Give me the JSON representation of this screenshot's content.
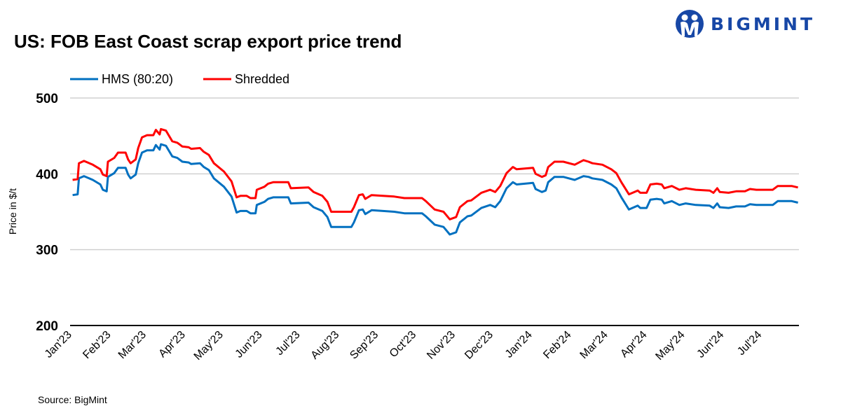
{
  "title": "US: FOB East Coast scrap export price trend",
  "brand": "BIGMINT",
  "source": "Source: BigMint",
  "chart_data": {
    "type": "line",
    "title": "US: FOB East Coast scrap export price trend",
    "ylabel": "Price in $/t",
    "xlabel": "",
    "ylim": [
      200,
      500
    ],
    "yticks": [
      200,
      300,
      400,
      500
    ],
    "grid": true,
    "legend": "top-left",
    "x_tick_labels": [
      "Jan'23",
      "Feb'23",
      "Mar'23",
      "Apr'23",
      "May'23",
      "Jun'23",
      "Jul'23",
      "Aug'23",
      "Sep'23",
      "Oct'23",
      "Nov'23",
      "Dec'23",
      "Jan'24",
      "Feb'24",
      "Mar'24",
      "Apr'24",
      "May'24",
      "Jun'24",
      "Jul'24"
    ],
    "x_tick_dates": [
      "2023-01-01",
      "2023-02-01",
      "2023-03-01",
      "2023-04-01",
      "2023-05-01",
      "2023-06-01",
      "2023-07-01",
      "2023-08-01",
      "2023-09-01",
      "2023-10-01",
      "2023-11-01",
      "2023-12-01",
      "2024-01-01",
      "2024-02-01",
      "2024-03-01",
      "2024-04-01",
      "2024-05-01",
      "2024-06-01",
      "2024-07-01"
    ],
    "x": [
      "2023-01-03",
      "2023-01-07",
      "2023-01-08",
      "2023-01-12",
      "2023-01-19",
      "2023-01-25",
      "2023-01-27",
      "2023-01-30",
      "2023-01-31",
      "2023-02-05",
      "2023-02-08",
      "2023-02-14",
      "2023-02-16",
      "2023-02-18",
      "2023-02-22",
      "2023-02-24",
      "2023-02-27",
      "2023-03-03",
      "2023-03-08",
      "2023-03-10",
      "2023-03-13",
      "2023-03-14",
      "2023-03-18",
      "2023-03-23",
      "2023-03-27",
      "2023-03-31",
      "2023-04-05",
      "2023-04-07",
      "2023-04-14",
      "2023-04-17",
      "2023-04-21",
      "2023-04-25",
      "2023-05-03",
      "2023-05-09",
      "2023-05-13",
      "2023-05-16",
      "2023-05-21",
      "2023-05-24",
      "2023-05-28",
      "2023-05-29",
      "2023-06-04",
      "2023-06-07",
      "2023-06-11",
      "2023-06-23",
      "2023-06-25",
      "2023-07-09",
      "2023-07-13",
      "2023-07-20",
      "2023-07-24",
      "2023-07-27",
      "2023-08-06",
      "2023-08-12",
      "2023-08-14",
      "2023-08-18",
      "2023-08-21",
      "2023-08-23",
      "2023-08-28",
      "2023-09-15",
      "2023-09-23",
      "2023-10-07",
      "2023-10-10",
      "2023-10-17",
      "2023-10-24",
      "2023-10-29",
      "2023-11-03",
      "2023-11-06",
      "2023-11-12",
      "2023-11-15",
      "2023-11-23",
      "2023-11-30",
      "2023-12-04",
      "2023-12-08",
      "2023-12-13",
      "2023-12-18",
      "2023-12-21",
      "2024-01-03",
      "2024-01-05",
      "2024-01-10",
      "2024-01-13",
      "2024-01-15",
      "2024-01-20",
      "2024-01-27",
      "2024-02-05",
      "2024-02-12",
      "2024-02-16",
      "2024-02-19",
      "2024-02-27",
      "2024-03-05",
      "2024-03-09",
      "2024-03-13",
      "2024-03-19",
      "2024-03-26",
      "2024-03-28",
      "2024-04-02",
      "2024-04-05",
      "2024-04-10",
      "2024-04-14",
      "2024-04-16",
      "2024-04-22",
      "2024-04-28",
      "2024-05-03",
      "2024-05-11",
      "2024-05-22",
      "2024-05-25",
      "2024-05-28",
      "2024-05-30",
      "2024-06-06",
      "2024-06-12",
      "2024-06-19",
      "2024-06-23",
      "2024-06-28",
      "2024-07-11",
      "2024-07-15",
      "2024-07-26",
      "2024-07-31"
    ],
    "series": [
      {
        "name": "HMS (80:20)",
        "color": "#0070c0",
        "values": [
          372,
          373,
          394,
          397,
          392,
          386,
          379,
          377,
          396,
          401,
          408,
          408,
          399,
          394,
          399,
          414,
          428,
          431,
          431,
          438,
          432,
          439,
          437,
          423,
          421,
          416,
          415,
          413,
          414,
          409,
          405,
          394,
          383,
          370,
          349,
          351,
          351,
          348,
          348,
          359,
          363,
          367,
          369,
          369,
          361,
          362,
          356,
          351,
          343,
          330,
          330,
          330,
          336,
          352,
          353,
          347,
          352,
          350,
          348,
          348,
          344,
          333,
          330,
          320,
          323,
          336,
          344,
          345,
          355,
          359,
          356,
          364,
          381,
          389,
          386,
          388,
          380,
          376,
          378,
          389,
          396,
          396,
          392,
          397,
          396,
          394,
          392,
          386,
          381,
          369,
          353,
          358,
          355,
          355,
          366,
          367,
          366,
          361,
          364,
          359,
          361,
          359,
          358,
          355,
          361,
          356,
          355,
          357,
          357,
          360,
          359,
          359,
          364,
          364,
          362
        ]
      },
      {
        "name": "Shredded",
        "color": "#ff0000",
        "values": [
          392,
          393,
          414,
          417,
          412,
          406,
          399,
          397,
          416,
          421,
          428,
          428,
          419,
          414,
          419,
          434,
          448,
          451,
          451,
          458,
          452,
          459,
          457,
          443,
          441,
          436,
          435,
          433,
          434,
          429,
          425,
          414,
          403,
          390,
          369,
          371,
          371,
          368,
          368,
          379,
          383,
          387,
          389,
          389,
          381,
          382,
          376,
          371,
          363,
          350,
          350,
          350,
          356,
          372,
          373,
          367,
          372,
          370,
          368,
          368,
          364,
          353,
          350,
          340,
          343,
          356,
          364,
          365,
          375,
          379,
          376,
          384,
          401,
          409,
          406,
          408,
          400,
          396,
          398,
          409,
          416,
          416,
          412,
          418,
          416,
          414,
          412,
          406,
          401,
          389,
          373,
          378,
          375,
          375,
          386,
          387,
          386,
          381,
          384,
          379,
          381,
          379,
          378,
          375,
          381,
          376,
          375,
          377,
          377,
          380,
          379,
          379,
          384,
          384,
          382
        ]
      }
    ]
  }
}
